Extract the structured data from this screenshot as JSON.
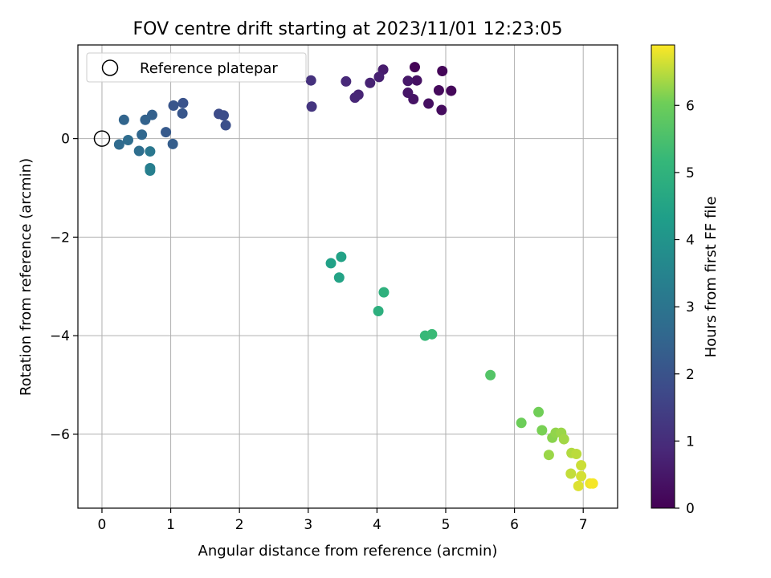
{
  "chart_data": {
    "type": "scatter",
    "title": "FOV centre drift starting at 2023/11/01 12:23:05",
    "xlabel": "Angular distance from reference (arcmin)",
    "ylabel": "Rotation from reference (arcmin)",
    "xlim": [
      -0.35,
      7.5
    ],
    "ylim": [
      -7.5,
      1.9
    ],
    "xticks": [
      0,
      1,
      2,
      3,
      4,
      5,
      6,
      7
    ],
    "yticks": [
      0,
      -2,
      -4,
      -6
    ],
    "grid": true,
    "legend": {
      "placement": "upper left",
      "entries": [
        "Reference platepar"
      ]
    },
    "reference": {
      "x": 0,
      "y": 0
    },
    "colorbar": {
      "label": "Hours from first FF file",
      "range": [
        0,
        6.9
      ],
      "ticks": [
        0,
        1,
        2,
        3,
        4,
        5,
        6
      ],
      "colormap": "viridis"
    },
    "points": [
      {
        "x": 4.55,
        "y": 1.45,
        "hours": 0.05
      },
      {
        "x": 4.95,
        "y": 1.37,
        "hours": 0.1
      },
      {
        "x": 5.08,
        "y": 0.97,
        "hours": 0.15
      },
      {
        "x": 4.9,
        "y": 0.98,
        "hours": 0.2
      },
      {
        "x": 4.94,
        "y": 0.58,
        "hours": 0.25
      },
      {
        "x": 4.75,
        "y": 0.71,
        "hours": 0.3
      },
      {
        "x": 4.58,
        "y": 1.18,
        "hours": 0.35
      },
      {
        "x": 4.53,
        "y": 0.8,
        "hours": 0.4
      },
      {
        "x": 4.45,
        "y": 0.93,
        "hours": 0.45
      },
      {
        "x": 4.45,
        "y": 1.17,
        "hours": 0.5
      },
      {
        "x": 4.09,
        "y": 1.4,
        "hours": 0.6
      },
      {
        "x": 4.03,
        "y": 1.25,
        "hours": 0.7
      },
      {
        "x": 3.9,
        "y": 1.13,
        "hours": 0.75
      },
      {
        "x": 3.73,
        "y": 0.89,
        "hours": 0.8
      },
      {
        "x": 3.68,
        "y": 0.83,
        "hours": 0.85
      },
      {
        "x": 3.55,
        "y": 1.16,
        "hours": 0.9
      },
      {
        "x": 3.04,
        "y": 1.18,
        "hours": 1.1
      },
      {
        "x": 3.05,
        "y": 0.65,
        "hours": 1.2
      },
      {
        "x": 1.7,
        "y": 0.5,
        "hours": 1.8
      },
      {
        "x": 1.77,
        "y": 0.47,
        "hours": 1.85
      },
      {
        "x": 1.8,
        "y": 0.27,
        "hours": 1.9
      },
      {
        "x": 1.18,
        "y": 0.72,
        "hours": 2.0
      },
      {
        "x": 1.04,
        "y": 0.67,
        "hours": 2.05
      },
      {
        "x": 1.17,
        "y": 0.51,
        "hours": 2.1
      },
      {
        "x": 0.93,
        "y": 0.13,
        "hours": 2.2
      },
      {
        "x": 1.03,
        "y": -0.11,
        "hours": 2.3
      },
      {
        "x": 0.73,
        "y": 0.48,
        "hours": 2.4
      },
      {
        "x": 0.63,
        "y": 0.38,
        "hours": 2.45
      },
      {
        "x": 0.32,
        "y": 0.38,
        "hours": 2.5
      },
      {
        "x": 0.58,
        "y": 0.08,
        "hours": 2.6
      },
      {
        "x": 0.25,
        "y": -0.12,
        "hours": 2.7
      },
      {
        "x": 0.38,
        "y": -0.03,
        "hours": 2.75
      },
      {
        "x": 0.54,
        "y": -0.25,
        "hours": 2.8
      },
      {
        "x": 0.7,
        "y": -0.26,
        "hours": 3.1
      },
      {
        "x": 0.7,
        "y": -0.6,
        "hours": 3.3
      },
      {
        "x": 0.7,
        "y": -0.65,
        "hours": 3.35
      },
      {
        "x": 3.33,
        "y": -2.53,
        "hours": 4.4
      },
      {
        "x": 3.48,
        "y": -2.4,
        "hours": 4.45
      },
      {
        "x": 3.45,
        "y": -2.82,
        "hours": 4.5
      },
      {
        "x": 4.1,
        "y": -3.12,
        "hours": 4.95
      },
      {
        "x": 4.02,
        "y": -3.5,
        "hours": 4.9
      },
      {
        "x": 4.7,
        "y": -4.0,
        "hours": 5.2
      },
      {
        "x": 4.8,
        "y": -3.97,
        "hours": 5.25
      },
      {
        "x": 5.65,
        "y": -4.8,
        "hours": 5.65
      },
      {
        "x": 6.1,
        "y": -5.77,
        "hours": 6.0
      },
      {
        "x": 6.35,
        "y": -5.55,
        "hours": 6.05
      },
      {
        "x": 6.4,
        "y": -5.92,
        "hours": 6.1
      },
      {
        "x": 6.55,
        "y": -6.07,
        "hours": 6.2
      },
      {
        "x": 6.6,
        "y": -5.97,
        "hours": 6.25
      },
      {
        "x": 6.68,
        "y": -5.97,
        "hours": 6.3
      },
      {
        "x": 6.72,
        "y": -6.1,
        "hours": 6.35
      },
      {
        "x": 6.5,
        "y": -6.42,
        "hours": 6.3
      },
      {
        "x": 6.83,
        "y": -6.38,
        "hours": 6.45
      },
      {
        "x": 6.9,
        "y": -6.4,
        "hours": 6.5
      },
      {
        "x": 6.97,
        "y": -6.63,
        "hours": 6.6
      },
      {
        "x": 6.82,
        "y": -6.8,
        "hours": 6.55
      },
      {
        "x": 6.97,
        "y": -6.85,
        "hours": 6.65
      },
      {
        "x": 6.93,
        "y": -7.05,
        "hours": 6.7
      },
      {
        "x": 7.1,
        "y": -7.0,
        "hours": 6.8
      },
      {
        "x": 7.14,
        "y": -7.0,
        "hours": 6.85
      }
    ]
  }
}
